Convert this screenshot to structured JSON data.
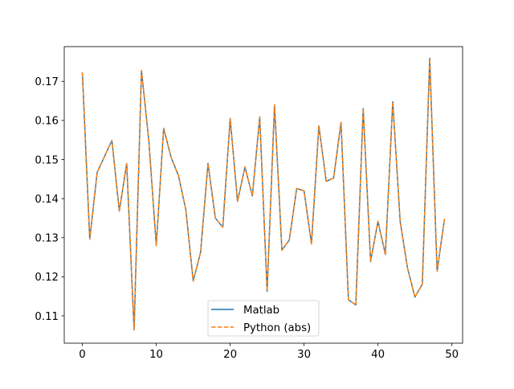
{
  "chart_data": {
    "type": "line",
    "title": "",
    "xlabel": "",
    "ylabel": "",
    "xlim": [
      -2.45,
      51.45
    ],
    "ylim": [
      0.103,
      0.1789
    ],
    "grid": false,
    "legend_position": "lower center",
    "x_ticks": [
      0,
      10,
      20,
      30,
      40,
      50
    ],
    "x_tick_labels": [
      "0",
      "10",
      "20",
      "30",
      "40",
      "50"
    ],
    "y_ticks": [
      0.11,
      0.12,
      0.13,
      0.14,
      0.15,
      0.16,
      0.17
    ],
    "y_tick_labels": [
      "0.11",
      "0.12",
      "0.13",
      "0.14",
      "0.15",
      "0.16",
      "0.17"
    ],
    "x": [
      0,
      1,
      2,
      3,
      4,
      5,
      6,
      7,
      8,
      9,
      10,
      11,
      12,
      13,
      14,
      15,
      16,
      17,
      18,
      19,
      20,
      21,
      22,
      23,
      24,
      25,
      26,
      27,
      28,
      29,
      30,
      31,
      32,
      33,
      34,
      35,
      36,
      37,
      38,
      39,
      40,
      41,
      42,
      43,
      44,
      45,
      46,
      47,
      48,
      49
    ],
    "series": [
      {
        "name": "Matlab",
        "color": "#1f77b4",
        "linestyle": "solid",
        "values": [
          0.1723,
          0.1296,
          0.1467,
          0.1508,
          0.1549,
          0.1368,
          0.149,
          0.1064,
          0.1728,
          0.1547,
          0.128,
          0.158,
          0.1506,
          0.1459,
          0.1372,
          0.1189,
          0.1263,
          0.149,
          0.135,
          0.1327,
          0.1605,
          0.1393,
          0.1481,
          0.1407,
          0.1609,
          0.1163,
          0.164,
          0.1268,
          0.1294,
          0.1426,
          0.142,
          0.1284,
          0.1586,
          0.1444,
          0.1453,
          0.1595,
          0.1141,
          0.1128,
          0.163,
          0.1239,
          0.1342,
          0.1257,
          0.1648,
          0.1342,
          0.1222,
          0.1148,
          0.1181,
          0.1759,
          0.1214,
          0.1348
        ]
      },
      {
        "name": "Python (abs)",
        "color": "#ff7f0e",
        "linestyle": "dashed",
        "values": [
          0.1723,
          0.1296,
          0.1467,
          0.1508,
          0.1549,
          0.1368,
          0.149,
          0.1064,
          0.1728,
          0.1547,
          0.128,
          0.158,
          0.1506,
          0.1459,
          0.1372,
          0.1189,
          0.1263,
          0.149,
          0.135,
          0.1327,
          0.1605,
          0.1393,
          0.1481,
          0.1407,
          0.1609,
          0.1163,
          0.164,
          0.1268,
          0.1294,
          0.1426,
          0.142,
          0.1284,
          0.1586,
          0.1444,
          0.1453,
          0.1595,
          0.1141,
          0.1128,
          0.163,
          0.1239,
          0.1342,
          0.1257,
          0.1648,
          0.1342,
          0.1222,
          0.1148,
          0.1181,
          0.1759,
          0.1214,
          0.1348
        ]
      }
    ]
  },
  "legend": {
    "items": [
      {
        "label": "Matlab",
        "color": "#1f77b4",
        "style": "solid"
      },
      {
        "label": "Python (abs)",
        "color": "#ff7f0e",
        "style": "dashed"
      }
    ]
  }
}
